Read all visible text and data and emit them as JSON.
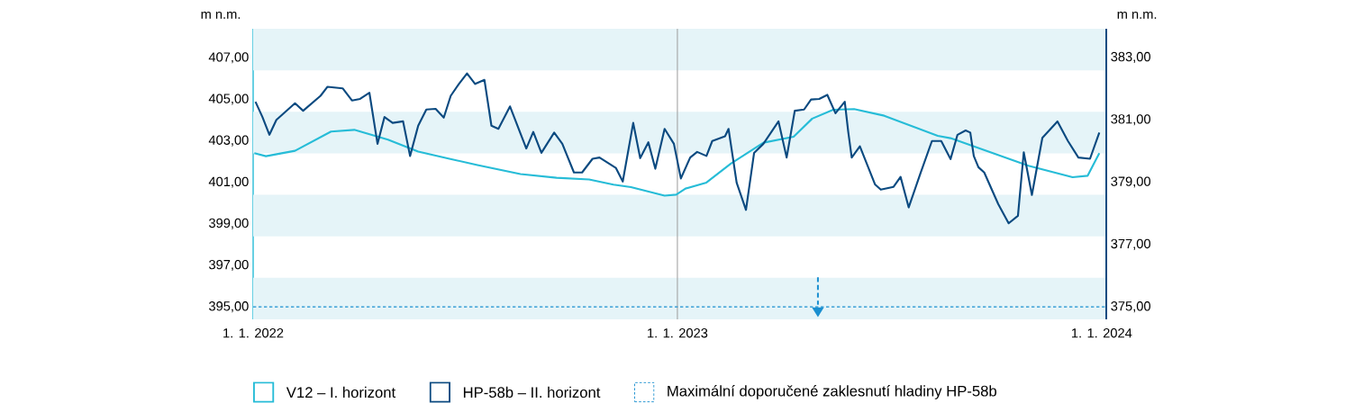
{
  "chart_data": {
    "type": "line",
    "ylabel": "m n.m.",
    "y2label": "m n.m.",
    "xlim": [
      "2022-01-01",
      "2024-01-05"
    ],
    "xticks": [
      {
        "value": "2022-01-01",
        "label": "1. 1. 2022"
      },
      {
        "value": "2023-01-01",
        "label": "1. 1. 2023"
      },
      {
        "value": "2024-01-01",
        "label": "1. 1. 2024"
      }
    ],
    "ylim": [
      394.4,
      408.4
    ],
    "yticks": [
      {
        "value": 395,
        "label": "395,00"
      },
      {
        "value": 397,
        "label": "397,00"
      },
      {
        "value": 399,
        "label": "399,00"
      },
      {
        "value": 401,
        "label": "401,00"
      },
      {
        "value": 403,
        "label": "403,00"
      },
      {
        "value": 405,
        "label": "405,00"
      },
      {
        "value": 407,
        "label": "407,00"
      }
    ],
    "y2lim": [
      374.6,
      383.92
    ],
    "y2ticks": [
      {
        "value": 375,
        "label": "375,00"
      },
      {
        "value": 377,
        "label": "377,00"
      },
      {
        "value": 379,
        "label": "379,00"
      },
      {
        "value": 381,
        "label": "381,00"
      },
      {
        "value": 383,
        "label": "383,00"
      }
    ],
    "legend": "bottom",
    "line_style": "solid",
    "bands": [
      {
        "axis": "y",
        "from": 394.4,
        "to": 396.4,
        "color": "#e5f4f8"
      },
      {
        "axis": "y",
        "from": 398.4,
        "to": 400.4,
        "color": "#e5f4f8"
      },
      {
        "axis": "y",
        "from": 402.4,
        "to": 404.4,
        "color": "#e5f4f8"
      },
      {
        "axis": "y",
        "from": 406.4,
        "to": 408.4,
        "color": "#e5f4f8"
      }
    ],
    "ref_lines": [
      {
        "axis": "x",
        "value": "2023-01-01",
        "color": "#a0a0a0"
      },
      {
        "axis": "y2",
        "value": 375,
        "label": "Maximální doporučené zaklesnutí hladiny HP-58b",
        "color": "#1a8fd0",
        "line_style": "dashed"
      }
    ],
    "series": [
      {
        "name": "V12 – I. horizont",
        "color": "#26bcd7",
        "x": [
          "2022-01-02",
          "2022-01-12",
          "2022-02-06",
          "2022-03-09",
          "2022-03-29",
          "2022-04-27",
          "2022-05-23",
          "2022-06-18",
          "2022-07-13",
          "2022-08-19",
          "2022-09-19",
          "2022-10-17",
          "2022-11-07",
          "2022-11-22",
          "2022-12-21",
          "2022-12-31",
          "2023-01-08",
          "2023-01-26",
          "2023-02-16",
          "2023-03-16",
          "2023-04-11",
          "2023-04-27",
          "2023-05-15",
          "2023-06-02",
          "2023-06-28",
          "2023-08-13",
          "2023-08-24",
          "2023-10-30",
          "2023-12-07",
          "2023-12-20",
          "2023-12-30"
        ],
        "values": [
          402.41,
          402.26,
          402.52,
          403.45,
          403.53,
          403.06,
          402.48,
          402.15,
          401.83,
          401.4,
          401.22,
          401.14,
          400.89,
          400.77,
          400.36,
          400.41,
          400.7,
          400.99,
          401.9,
          402.91,
          403.2,
          404.07,
          404.5,
          404.53,
          404.21,
          403.24,
          403.13,
          401.8,
          401.25,
          401.32,
          402.41
        ]
      },
      {
        "name": "HP-58b – II. horizont",
        "color": "#0b4a80",
        "axis": "y2",
        "x": [
          "2022-01-03",
          "2022-01-09",
          "2022-01-15",
          "2022-01-21",
          "2022-02-06",
          "2022-02-13",
          "2022-02-28",
          "2022-03-06",
          "2022-03-19",
          "2022-03-27",
          "2022-04-03",
          "2022-04-11",
          "2022-04-18",
          "2022-04-24",
          "2022-05-01",
          "2022-05-10",
          "2022-05-16",
          "2022-05-23",
          "2022-05-30",
          "2022-06-07",
          "2022-06-14",
          "2022-06-20",
          "2022-06-27",
          "2022-07-04",
          "2022-07-11",
          "2022-07-19",
          "2022-07-25",
          "2022-07-31",
          "2022-08-10",
          "2022-08-24",
          "2022-08-30",
          "2022-09-06",
          "2022-09-17",
          "2022-09-24",
          "2022-10-04",
          "2022-10-11",
          "2022-10-20",
          "2022-10-26",
          "2022-11-09",
          "2022-11-15",
          "2022-11-24",
          "2022-11-30",
          "2022-12-07",
          "2022-12-13",
          "2022-12-21",
          "2022-12-29",
          "2023-01-04",
          "2023-01-12",
          "2023-01-18",
          "2023-01-26",
          "2023-01-31",
          "2023-02-11",
          "2023-02-14",
          "2023-02-21",
          "2023-03-01",
          "2023-03-08",
          "2023-03-16",
          "2023-03-29",
          "2023-04-05",
          "2023-04-12",
          "2023-04-20",
          "2023-04-26",
          "2023-05-03",
          "2023-05-10",
          "2023-05-17",
          "2023-05-25",
          "2023-05-28",
          "2023-05-31",
          "2023-06-07",
          "2023-06-20",
          "2023-06-25",
          "2023-07-06",
          "2023-07-12",
          "2023-07-19",
          "2023-07-29",
          "2023-08-08",
          "2023-08-16",
          "2023-08-24",
          "2023-08-30",
          "2023-09-06",
          "2023-09-10",
          "2023-09-13",
          "2023-09-17",
          "2023-09-22",
          "2023-10-04",
          "2023-10-13",
          "2023-10-21",
          "2023-10-26",
          "2023-11-02",
          "2023-11-11",
          "2023-11-24",
          "2023-12-03",
          "2023-12-12",
          "2023-12-22",
          "2023-12-30"
        ],
        "values": [
          381.58,
          381.09,
          380.52,
          381.0,
          381.53,
          381.29,
          381.77,
          382.06,
          382.01,
          381.62,
          381.67,
          381.87,
          380.23,
          381.09,
          380.9,
          380.95,
          379.84,
          380.81,
          381.33,
          381.35,
          381.07,
          381.77,
          382.15,
          382.49,
          382.15,
          382.28,
          380.81,
          380.71,
          381.43,
          380.08,
          380.61,
          379.94,
          380.59,
          380.23,
          379.31,
          379.31,
          379.75,
          379.79,
          379.46,
          379.02,
          380.9,
          379.77,
          380.28,
          379.43,
          380.71,
          380.23,
          379.12,
          379.79,
          379.97,
          379.84,
          380.32,
          380.47,
          380.71,
          378.98,
          378.11,
          379.94,
          380.23,
          380.95,
          379.79,
          381.29,
          381.33,
          381.65,
          381.67,
          381.8,
          381.21,
          381.58,
          380.61,
          379.79,
          380.15,
          378.93,
          378.76,
          378.85,
          379.17,
          378.19,
          379.27,
          380.32,
          380.32,
          379.74,
          380.52,
          380.66,
          380.59,
          379.84,
          379.48,
          379.31,
          378.3,
          377.68,
          377.92,
          379.96,
          378.59,
          380.42,
          380.95,
          380.32,
          379.79,
          379.75,
          380.59
        ]
      }
    ]
  }
}
